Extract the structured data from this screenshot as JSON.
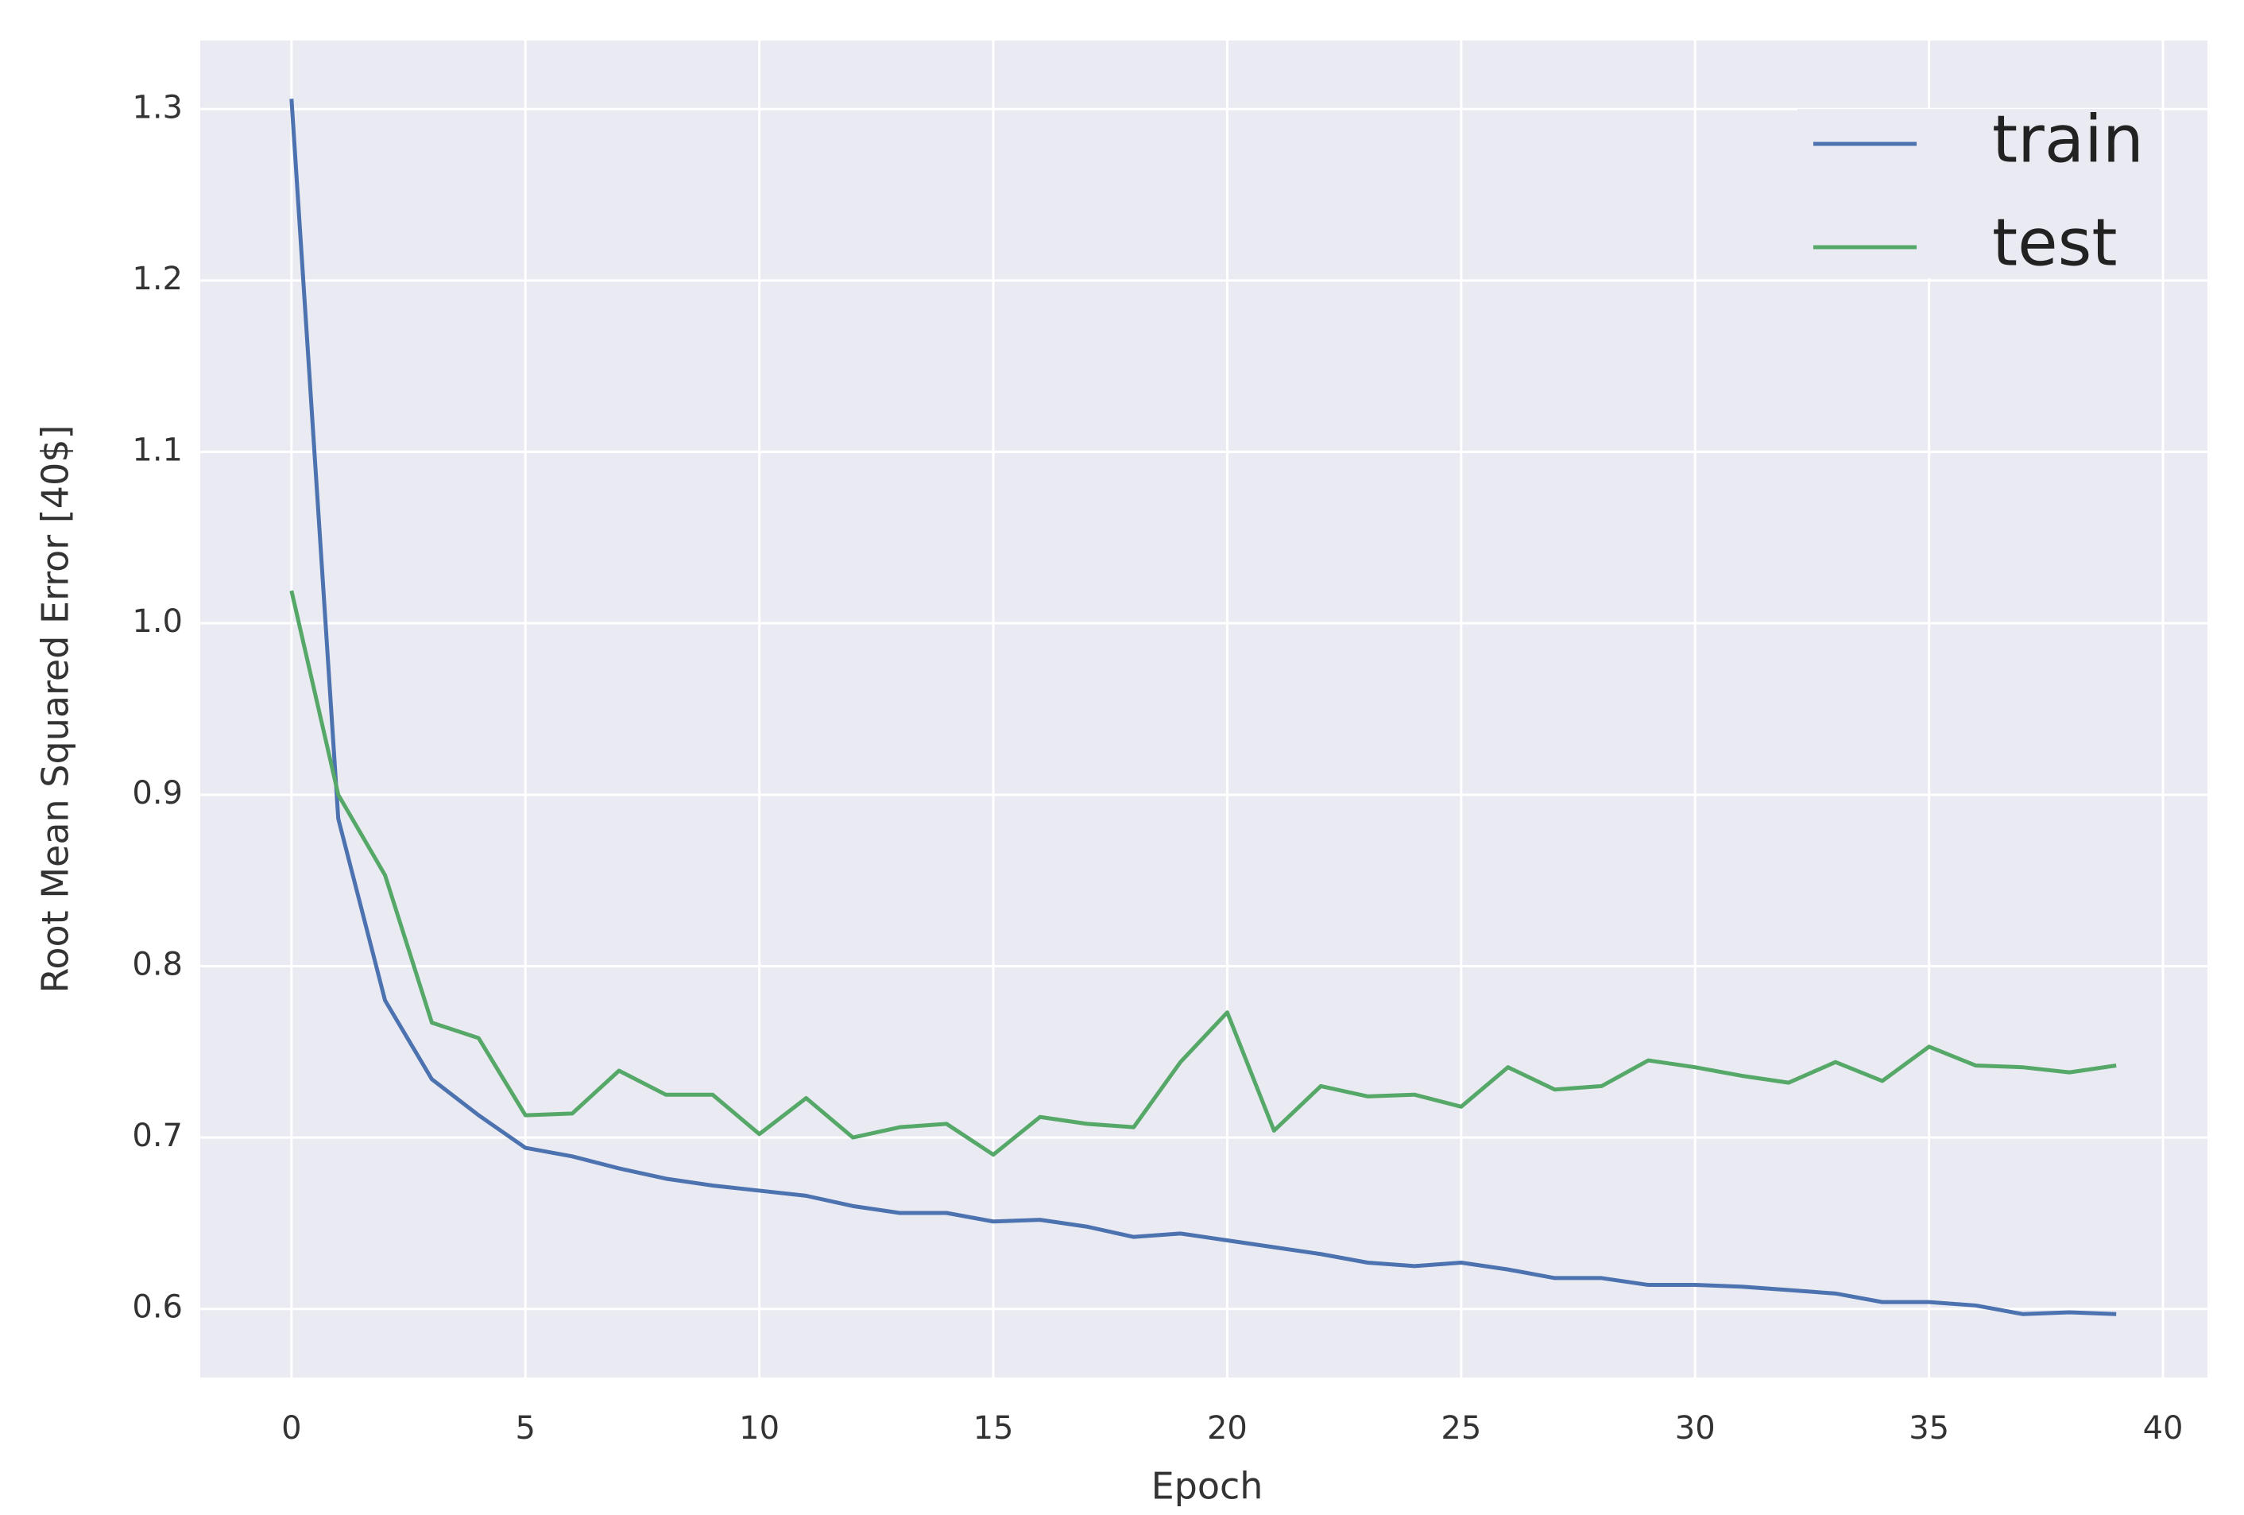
{
  "chart_data": {
    "type": "line",
    "x_label": "Epoch",
    "y_label": "Root Mean Squared Error [40$]",
    "x": [
      0,
      1,
      2,
      3,
      4,
      5,
      6,
      7,
      8,
      9,
      10,
      11,
      12,
      13,
      14,
      15,
      16,
      17,
      18,
      19,
      20,
      21,
      22,
      23,
      24,
      25,
      26,
      27,
      28,
      29,
      30,
      31,
      32,
      33,
      34,
      35,
      36,
      37,
      38,
      39
    ],
    "series": [
      {
        "name": "train",
        "color": "#4c72b0",
        "values": [
          1.306,
          0.886,
          0.78,
          0.734,
          0.713,
          0.694,
          0.689,
          0.682,
          0.676,
          0.672,
          0.669,
          0.666,
          0.66,
          0.656,
          0.656,
          0.651,
          0.652,
          0.648,
          0.642,
          0.644,
          0.64,
          0.636,
          0.632,
          0.627,
          0.625,
          0.627,
          0.623,
          0.618,
          0.618,
          0.614,
          0.614,
          0.613,
          0.611,
          0.609,
          0.604,
          0.604,
          0.602,
          0.597,
          0.598,
          0.597
        ]
      },
      {
        "name": "test",
        "color": "#55a868",
        "values": [
          1.019,
          0.9,
          0.853,
          0.767,
          0.758,
          0.713,
          0.714,
          0.739,
          0.725,
          0.725,
          0.702,
          0.723,
          0.7,
          0.706,
          0.708,
          0.69,
          0.712,
          0.708,
          0.706,
          0.744,
          0.773,
          0.704,
          0.73,
          0.724,
          0.725,
          0.718,
          0.741,
          0.728,
          0.73,
          0.745,
          0.741,
          0.736,
          0.732,
          0.744,
          0.733,
          0.753,
          0.742,
          0.741,
          0.738,
          0.742
        ]
      }
    ],
    "xlim": [
      -1.95,
      40.95
    ],
    "xticks": [
      0,
      5,
      10,
      15,
      20,
      25,
      30,
      35,
      40
    ],
    "ylim": [
      0.56,
      1.34
    ],
    "yticks": [
      0.6,
      0.7,
      0.8,
      0.9,
      {
        "value": 1,
        "label": "1.0"
      },
      1.1,
      1.2,
      1.3
    ],
    "grid": true,
    "legend": "upper right"
  }
}
